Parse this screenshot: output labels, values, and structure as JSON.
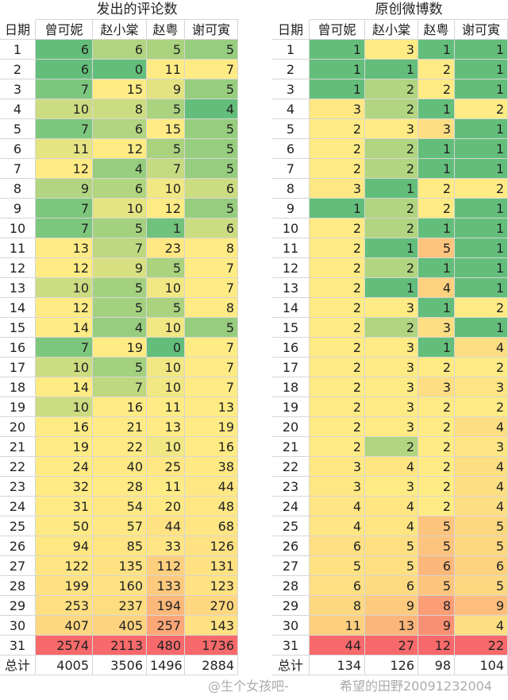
{
  "tables": [
    {
      "title": "发出的评论数",
      "columns": [
        "日期",
        "曾可妮",
        "赵小棠",
        "赵粤",
        "谢可寅"
      ],
      "rows": [
        [
          1,
          6,
          6,
          5,
          5
        ],
        [
          2,
          6,
          0,
          11,
          7
        ],
        [
          3,
          7,
          15,
          9,
          5
        ],
        [
          4,
          10,
          8,
          5,
          4
        ],
        [
          5,
          7,
          6,
          15,
          5
        ],
        [
          6,
          11,
          12,
          5,
          5
        ],
        [
          7,
          12,
          4,
          7,
          5
        ],
        [
          8,
          9,
          6,
          10,
          6
        ],
        [
          9,
          7,
          10,
          12,
          5
        ],
        [
          10,
          7,
          5,
          1,
          6
        ],
        [
          11,
          13,
          7,
          23,
          8
        ],
        [
          12,
          12,
          9,
          5,
          7
        ],
        [
          13,
          10,
          5,
          10,
          7
        ],
        [
          14,
          12,
          5,
          5,
          8
        ],
        [
          15,
          14,
          4,
          10,
          5
        ],
        [
          16,
          7,
          19,
          0,
          7
        ],
        [
          17,
          10,
          5,
          10,
          7
        ],
        [
          18,
          14,
          7,
          10,
          7
        ],
        [
          19,
          10,
          16,
          11,
          13
        ],
        [
          20,
          16,
          21,
          13,
          19
        ],
        [
          21,
          19,
          22,
          10,
          16
        ],
        [
          22,
          24,
          40,
          25,
          38
        ],
        [
          23,
          32,
          28,
          11,
          44
        ],
        [
          24,
          31,
          54,
          20,
          48
        ],
        [
          25,
          50,
          57,
          44,
          68
        ],
        [
          26,
          94,
          85,
          33,
          126
        ],
        [
          27,
          122,
          135,
          112,
          131
        ],
        [
          28,
          199,
          160,
          133,
          123
        ],
        [
          29,
          253,
          237,
          194,
          270
        ],
        [
          30,
          407,
          405,
          257,
          143
        ],
        [
          31,
          2574,
          2113,
          480,
          1736
        ]
      ],
      "total_label": "总计",
      "totals": [
        4005,
        3506,
        1496,
        2884
      ]
    },
    {
      "title": "原创微博数",
      "columns": [
        "日期",
        "曾可妮",
        "赵小棠",
        "赵粤",
        "谢可寅"
      ],
      "rows": [
        [
          1,
          1,
          3,
          1,
          1
        ],
        [
          2,
          1,
          1,
          2,
          1
        ],
        [
          3,
          1,
          2,
          2,
          1
        ],
        [
          4,
          3,
          2,
          1,
          2
        ],
        [
          5,
          2,
          3,
          3,
          1
        ],
        [
          6,
          2,
          2,
          1,
          1
        ],
        [
          7,
          2,
          2,
          1,
          1
        ],
        [
          8,
          3,
          1,
          2,
          2
        ],
        [
          9,
          1,
          2,
          2,
          1
        ],
        [
          10,
          2,
          2,
          1,
          1
        ],
        [
          11,
          2,
          1,
          5,
          1
        ],
        [
          12,
          2,
          2,
          1,
          1
        ],
        [
          13,
          2,
          1,
          4,
          1
        ],
        [
          14,
          2,
          3,
          1,
          2
        ],
        [
          15,
          2,
          2,
          3,
          1
        ],
        [
          16,
          2,
          3,
          1,
          4
        ],
        [
          17,
          2,
          3,
          2,
          2
        ],
        [
          18,
          2,
          3,
          3,
          3
        ],
        [
          19,
          2,
          3,
          2,
          2
        ],
        [
          20,
          2,
          3,
          2,
          4
        ],
        [
          21,
          2,
          2,
          2,
          3
        ],
        [
          22,
          3,
          4,
          2,
          4
        ],
        [
          23,
          3,
          3,
          2,
          4
        ],
        [
          24,
          4,
          4,
          2,
          4
        ],
        [
          25,
          4,
          4,
          5,
          5
        ],
        [
          26,
          6,
          5,
          5,
          5
        ],
        [
          27,
          5,
          5,
          6,
          6
        ],
        [
          28,
          6,
          6,
          5,
          5
        ],
        [
          29,
          8,
          9,
          8,
          9
        ],
        [
          30,
          11,
          13,
          9,
          4
        ],
        [
          31,
          44,
          27,
          12,
          22
        ]
      ],
      "total_label": "总计",
      "totals": [
        134,
        126,
        98,
        104
      ]
    }
  ],
  "watermark": [
    "@生个女孩吧-",
    "希望的田野20091232004"
  ]
}
